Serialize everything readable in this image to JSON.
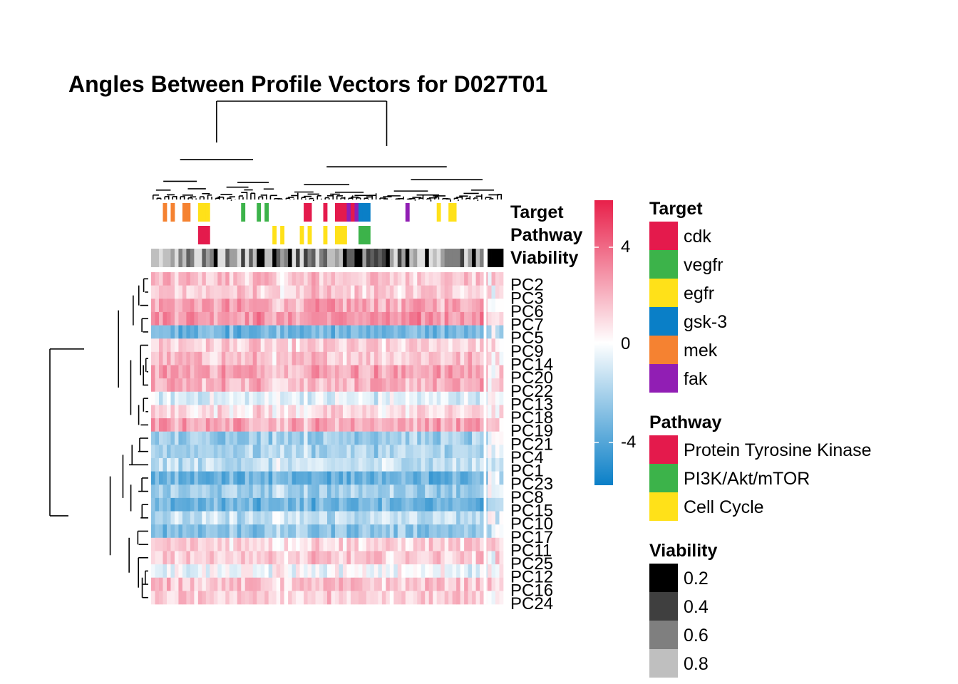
{
  "chart_data": {
    "type": "heatmap",
    "title": "Angles Between Profile Vectors for D027T01",
    "rows": [
      "PC2",
      "PC3",
      "PC6",
      "PC7",
      "PC5",
      "PC9",
      "PC14",
      "PC20",
      "PC22",
      "PC13",
      "PC18",
      "PC19",
      "PC21",
      "PC4",
      "PC1",
      "PC23",
      "PC8",
      "PC15",
      "PC10",
      "PC17",
      "PC11",
      "PC25",
      "PC12",
      "PC16",
      "PC24"
    ],
    "row_means": [
      1.6,
      1.3,
      2.4,
      2.9,
      -3.4,
      1.2,
      1.6,
      2.5,
      2.0,
      -0.8,
      0.9,
      2.4,
      -2.3,
      -2.0,
      -1.5,
      -3.6,
      -2.3,
      -3.5,
      -1.6,
      -2.7,
      1.2,
      1.4,
      -0.3,
      1.6,
      1.2
    ],
    "n_columns": 90,
    "color_scale": {
      "min": -6,
      "max": 6,
      "low_color": "#0A7FC7",
      "mid_color": "#FFFFFF",
      "high_color": "#E8204A",
      "ticks": [
        "4",
        "0",
        "-4"
      ]
    },
    "annotation_track_labels": [
      "Target",
      "Pathway",
      "Viability"
    ],
    "legends": {
      "target": {
        "title": "Target",
        "items": [
          {
            "label": "cdk",
            "color": "#E41A4C"
          },
          {
            "label": "vegfr",
            "color": "#3CB34A"
          },
          {
            "label": "egfr",
            "color": "#FFE119"
          },
          {
            "label": "gsk-3",
            "color": "#0A7FC7"
          },
          {
            "label": "mek",
            "color": "#F58231"
          },
          {
            "label": "fak",
            "color": "#911EB4"
          }
        ]
      },
      "pathway": {
        "title": "Pathway",
        "items": [
          {
            "label": "Protein Tyrosine Kinase",
            "color": "#E41A4C"
          },
          {
            "label": "PI3K/Akt/mTOR",
            "color": "#3CB34A"
          },
          {
            "label": "Cell Cycle",
            "color": "#FFE119"
          }
        ]
      },
      "viability": {
        "title": "Viability",
        "items": [
          {
            "label": "0.2",
            "color": "#000000"
          },
          {
            "label": "0.4",
            "color": "#3F3F3F"
          },
          {
            "label": "0.6",
            "color": "#7F7F7F"
          },
          {
            "label": "0.8",
            "color": "#BFBFBF"
          }
        ]
      }
    }
  }
}
